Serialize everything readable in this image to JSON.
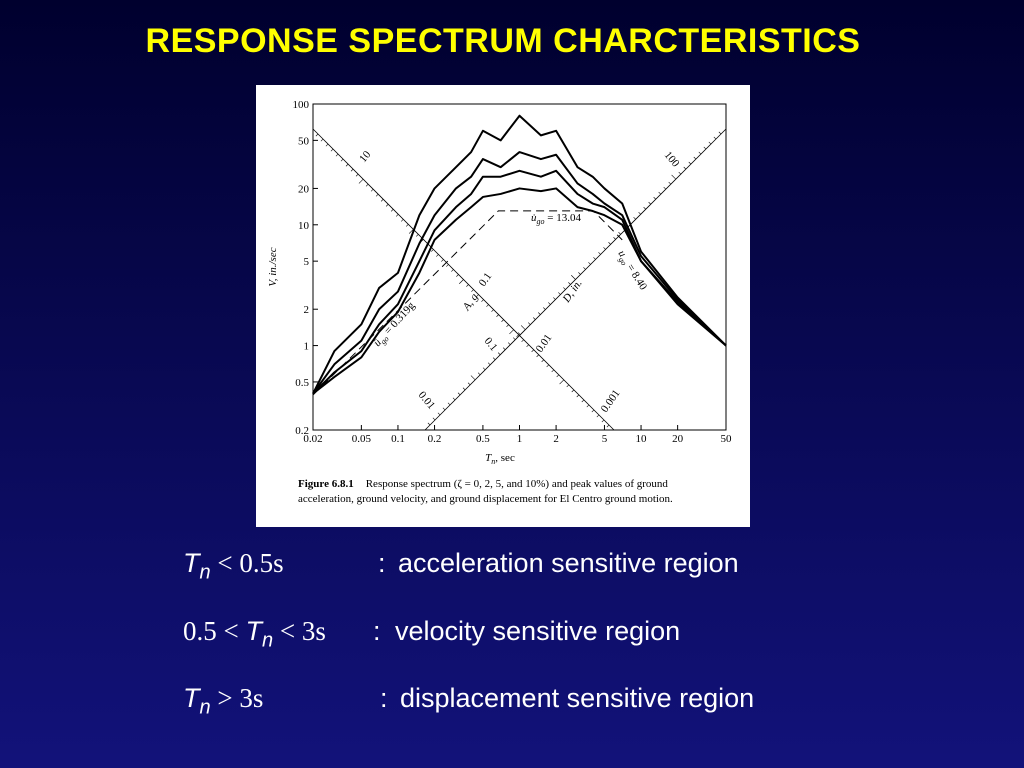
{
  "title": "RESPONSE SPECTRUM CHARCTERISTICS",
  "figure": {
    "type": "line",
    "xlabel": {
      "symbol": "T",
      "sub": "n",
      "text": ", sec"
    },
    "ylabel": "V, in./sec",
    "xlog": true,
    "ylog": true,
    "xlim": [
      0.02,
      50
    ],
    "ylim": [
      0.2,
      100
    ],
    "xticks": [
      0.02,
      0.05,
      0.1,
      0.2,
      0.5,
      1,
      2,
      5,
      10,
      20,
      50
    ],
    "yticks": [
      0.2,
      0.5,
      1,
      2,
      5,
      10,
      20,
      50,
      100
    ],
    "x": [
      0.02,
      0.03,
      0.05,
      0.07,
      0.1,
      0.15,
      0.2,
      0.3,
      0.4,
      0.5,
      0.7,
      1,
      1.5,
      2,
      3,
      4,
      5,
      7,
      10,
      20,
      50
    ],
    "series": [
      {
        "color": "#000000",
        "values": [
          0.4,
          0.9,
          1.5,
          3,
          4,
          12,
          20,
          30,
          40,
          60,
          50,
          80,
          55,
          60,
          30,
          25,
          20,
          15,
          6,
          2.5,
          1.0
        ]
      },
      {
        "color": "#000000",
        "values": [
          0.4,
          0.7,
          1.1,
          2,
          2.8,
          7,
          12,
          20,
          25,
          35,
          30,
          40,
          35,
          38,
          22,
          18,
          15,
          12,
          5.5,
          2.4,
          1.0
        ]
      },
      {
        "color": "#000000",
        "values": [
          0.4,
          0.6,
          0.9,
          1.5,
          2.2,
          5,
          9,
          14,
          18,
          25,
          25,
          28,
          25,
          28,
          18,
          15,
          14,
          11,
          5,
          2.3,
          1.0
        ]
      },
      {
        "color": "#000000",
        "values": [
          0.4,
          0.55,
          0.8,
          1.3,
          1.9,
          4,
          7.5,
          11,
          14,
          17,
          18,
          20,
          19,
          20,
          14,
          13,
          12,
          10,
          5,
          2.2,
          1.0
        ]
      }
    ],
    "bounds": {
      "x": [
        0.02,
        0.67,
        4.05,
        7
      ],
      "values": [
        0.39,
        13.04,
        13.04,
        7.5
      ]
    },
    "peaks": [
      {
        "symbol": "ü",
        "sub": "go",
        "text": " = 0.319g"
      },
      {
        "symbol": "u̇",
        "sub": "go",
        "text": " = 13.04"
      },
      {
        "symbol": "u",
        "sub": "go",
        "text": " = 8.40"
      }
    ],
    "diagonal_labels": [
      "10",
      "0.1",
      "A, g",
      "0.1",
      "0.01",
      "100",
      "D, in.",
      "0.01",
      "0.001"
    ],
    "caption": {
      "label": "Figure 6.8.1",
      "lines": [
        "Response spectrum (ζ = 0, 2, 5, and 10%) and peak values of ground",
        "acceleration, ground velocity, and ground displacement for El Centro ground motion."
      ]
    }
  },
  "items": [
    {
      "before": "",
      "symbol": "T",
      "sub": "n",
      "after": " < 0.5s",
      "sep": ":",
      "description": "acceleration sensitive region"
    },
    {
      "before": "0.5 < ",
      "symbol": "T",
      "sub": "n",
      "after": " < 3s",
      "sep": ":",
      "description": "velocity sensitive region"
    },
    {
      "before": "",
      "symbol": "T",
      "sub": "n",
      "after": " > 3s",
      "sep": ":",
      "description": "displacement sensitive region"
    }
  ]
}
